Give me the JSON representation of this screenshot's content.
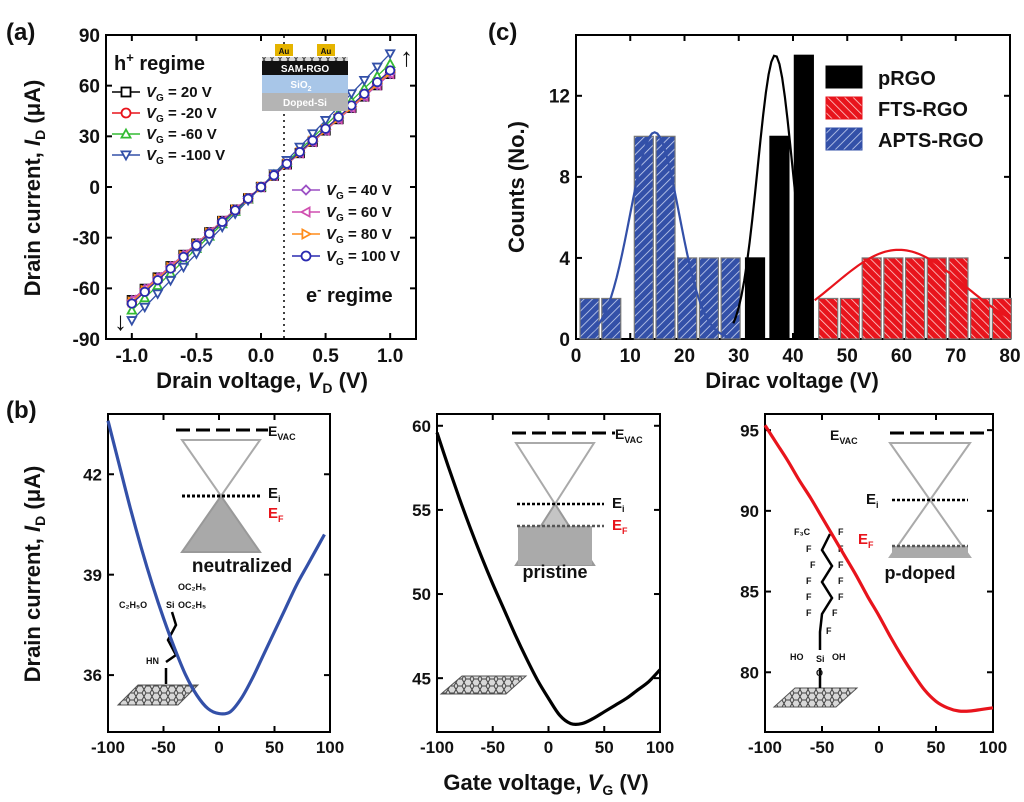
{
  "panel_a": {
    "label": "(a)",
    "ylabel_main": "Drain current, ",
    "ylabel_var": "I",
    "ylabel_sub": "D",
    "ylabel_unit": " (μA)",
    "xlabel_main": "Drain voltage, ",
    "xlabel_var": "V",
    "xlabel_sub": "D",
    "xlabel_unit": " (V)",
    "regime_h": "h",
    "regime_h_sup": "+",
    "regime_h_word": " regime",
    "regime_e": "e",
    "regime_e_sup": "-",
    "regime_e_word": " regime",
    "device_layers": [
      "Au",
      "Au",
      "SAM-RGO",
      "SiO",
      "2",
      "Doped-Si"
    ],
    "vg_prefix": "V",
    "vg_sub": "G",
    "legend_left": [
      " = 20 V",
      " = -20 V",
      " = -60 V",
      " = -100 V"
    ],
    "legend_right": [
      " = 40 V",
      " = 60 V",
      " = 80 V",
      " = 100 V"
    ],
    "up_arrow": "↑",
    "down_arrow": "↓"
  },
  "panel_b": {
    "label": "(b)",
    "ylabel_main": "Drain current, ",
    "ylabel_var": "I",
    "ylabel_sub": "D",
    "ylabel_unit": " (μA)",
    "xlabel_main": "Gate voltage, ",
    "xlabel_var": "V",
    "xlabel_sub": "G",
    "xlabel_unit": " (V)",
    "evac": "E",
    "evac_sub": "VAC",
    "ei": "E",
    "ei_sub": "i",
    "ef": "E",
    "ef_sub": "F",
    "state_labels": [
      "neutralized",
      "pristine",
      "p-doped"
    ],
    "apts_mol": [
      "C₂H₅O",
      "OC₂H₅",
      "Si",
      "OC₂H₅",
      "HN"
    ],
    "fts_mol": [
      "F₃C",
      "F",
      "F",
      "F",
      "F",
      "F",
      "F",
      "F",
      "F",
      "F",
      "F",
      "F",
      "F",
      "Si",
      "HO",
      "OH",
      "O"
    ]
  },
  "panel_c": {
    "label": "(c)",
    "legend": [
      "pRGO",
      "FTS-RGO",
      "APTS-RGO"
    ]
  },
  "colors": {
    "black": "#000000",
    "red": "#e8141c",
    "blue": "#3350a8",
    "green": "#33bb33",
    "purple": "#9b4fc4",
    "magenta": "#d04fb0",
    "orange": "#ff8c1a",
    "navy": "#2a2ab0"
  },
  "chart_data": [
    {
      "panel": "a",
      "type": "scatter",
      "xlabel": "Drain voltage, V_D (V)",
      "ylabel": "Drain current, I_D (μA)",
      "xlim": [
        -1.2,
        1.2
      ],
      "ylim": [
        -90,
        90
      ],
      "xticks": [
        -1.0,
        -0.5,
        0.0,
        0.5,
        1.0
      ],
      "xtick_labels": [
        "-1.0",
        "-0.5",
        "0.0",
        "0.5",
        "1.0"
      ],
      "yticks": [
        -90,
        -60,
        -30,
        0,
        30,
        60,
        90
      ],
      "ytick_labels": [
        "-90",
        "-60",
        "-30",
        "0",
        "30",
        "60",
        "90"
      ],
      "x": [
        -1.0,
        -0.9,
        -0.8,
        -0.7,
        -0.6,
        -0.5,
        -0.4,
        -0.3,
        -0.2,
        -0.1,
        0.0,
        0.1,
        0.2,
        0.3,
        0.4,
        0.5,
        0.6,
        0.7,
        0.8,
        0.9,
        1.0
      ],
      "series": [
        {
          "name": "V_G = 20 V",
          "slope": 67,
          "marker": "square",
          "color": "#000000"
        },
        {
          "name": "V_G = -20 V",
          "slope": 69,
          "marker": "circle",
          "color": "#e8141c"
        },
        {
          "name": "V_G = -60 V",
          "slope": 73,
          "marker": "triangle-up",
          "color": "#33bb33"
        },
        {
          "name": "V_G = -100 V",
          "slope": 79,
          "marker": "triangle-down",
          "color": "#3350a8"
        },
        {
          "name": "V_G = 40 V",
          "slope": 67,
          "marker": "diamond",
          "color": "#9b4fc4"
        },
        {
          "name": "V_G = 60 V",
          "slope": 67,
          "marker": "triangle-left",
          "color": "#d04fb0"
        },
        {
          "name": "V_G = 80 V",
          "slope": 68,
          "marker": "triangle-right",
          "color": "#ff8c1a"
        },
        {
          "name": "V_G = 100 V",
          "slope": 69,
          "marker": "circle",
          "color": "#2a2ab0"
        }
      ]
    },
    {
      "panel": "b-left",
      "type": "line",
      "xlim": [
        -100,
        100
      ],
      "ylim": [
        34.3,
        43.8
      ],
      "xticks": [
        -100,
        -50,
        0,
        50,
        100
      ],
      "xtick_labels": [
        "-100",
        "-50",
        "0",
        "50",
        "100"
      ],
      "yticks": [
        36,
        39,
        42
      ],
      "ytick_labels": [
        "36",
        "39",
        "42"
      ],
      "series": [
        {
          "name": "APTS-RGO",
          "color": "#3350a8",
          "x": [
            -100,
            -90,
            -80,
            -70,
            -60,
            -50,
            -40,
            -30,
            -20,
            -10,
            0,
            10,
            20,
            30,
            40,
            50,
            60,
            70,
            80,
            90,
            95
          ],
          "y": [
            43.6,
            42.3,
            41.0,
            39.8,
            38.7,
            37.7,
            36.8,
            36.0,
            35.4,
            35.0,
            34.85,
            34.9,
            35.3,
            35.9,
            36.6,
            37.3,
            38.0,
            38.7,
            39.3,
            39.9,
            40.2
          ]
        }
      ]
    },
    {
      "panel": "b-middle",
      "type": "line",
      "xlim": [
        -100,
        100
      ],
      "ylim": [
        41.8,
        60.7
      ],
      "xticks": [
        -100,
        -50,
        0,
        50,
        100
      ],
      "xtick_labels": [
        "-100",
        "-50",
        "0",
        "50",
        "100"
      ],
      "yticks": [
        45,
        50,
        55,
        60
      ],
      "ytick_labels": [
        "45",
        "50",
        "55",
        "60"
      ],
      "series": [
        {
          "name": "pRGO",
          "color": "#000000",
          "x": [
            -100,
            -90,
            -80,
            -70,
            -60,
            -50,
            -40,
            -30,
            -20,
            -10,
            0,
            10,
            20,
            30,
            40,
            50,
            60,
            70,
            80,
            90,
            100
          ],
          "y": [
            59.6,
            57.6,
            55.7,
            53.9,
            52.2,
            50.6,
            49.1,
            47.6,
            46.2,
            44.9,
            43.8,
            42.8,
            42.3,
            42.3,
            42.6,
            43.0,
            43.4,
            43.8,
            44.3,
            44.8,
            45.5
          ]
        }
      ]
    },
    {
      "panel": "b-right",
      "type": "line",
      "xlim": [
        -100,
        100
      ],
      "ylim": [
        76.3,
        96.0
      ],
      "xticks": [
        -100,
        -50,
        0,
        50,
        100
      ],
      "xtick_labels": [
        "-100",
        "-50",
        "0",
        "50",
        "100"
      ],
      "yticks": [
        80,
        85,
        90,
        95
      ],
      "ytick_labels": [
        "80",
        "85",
        "90",
        "95"
      ],
      "series": [
        {
          "name": "FTS-RGO",
          "color": "#e8141c",
          "x": [
            -100,
            -90,
            -80,
            -70,
            -60,
            -50,
            -40,
            -30,
            -20,
            -10,
            0,
            10,
            20,
            30,
            40,
            50,
            60,
            70,
            80,
            90,
            100
          ],
          "y": [
            95.3,
            94.2,
            93.1,
            91.9,
            90.8,
            89.6,
            88.4,
            87.2,
            86.0,
            84.7,
            83.5,
            82.2,
            81.0,
            79.9,
            78.9,
            78.2,
            77.8,
            77.6,
            77.6,
            77.7,
            77.8
          ]
        }
      ]
    },
    {
      "panel": "c",
      "type": "bar",
      "xlabel": "Dirac voltage (V)",
      "ylabel": "Counts (No.)",
      "xlim": [
        0,
        80
      ],
      "ylim": [
        0,
        15
      ],
      "xticks": [
        0,
        10,
        20,
        30,
        40,
        50,
        60,
        70,
        80
      ],
      "xtick_labels": [
        "0",
        "10",
        "20",
        "30",
        "40",
        "50",
        "60",
        "70",
        "80"
      ],
      "yticks": [
        0,
        4,
        8,
        12
      ],
      "ytick_labels": [
        "0",
        "4",
        "8",
        "12"
      ],
      "bin_width": 3.5,
      "series": [
        {
          "name": "APTS-RGO",
          "color": "#3350a8",
          "centers": [
            2.5,
            6.5,
            12.5,
            16.5,
            20.5,
            24.5,
            28.5
          ],
          "values": [
            2,
            2,
            10,
            10,
            4,
            4,
            4
          ],
          "fit": {
            "mu": 14.5,
            "sigma": 4.5,
            "amp": 10.2,
            "x": [
              3,
              28
            ]
          }
        },
        {
          "name": "pRGO",
          "color": "#000000",
          "centers": [
            33.0,
            37.5,
            42.0
          ],
          "values": [
            4,
            10,
            14
          ],
          "fit": {
            "mu": 36.7,
            "sigma": 3.2,
            "amp": 14.0,
            "x": [
              29,
              43
            ]
          }
        },
        {
          "name": "FTS-RGO",
          "color": "#e8141c",
          "centers": [
            46.5,
            50.5,
            54.5,
            58.5,
            62.5,
            66.5,
            70.5,
            74.5,
            78.5
          ],
          "values": [
            2,
            2,
            4,
            4,
            4,
            4,
            4,
            2,
            2
          ],
          "fit": {
            "mu": 59.5,
            "sigma": 12,
            "amp": 4.4,
            "x": [
              44,
              80
            ]
          }
        }
      ]
    }
  ]
}
